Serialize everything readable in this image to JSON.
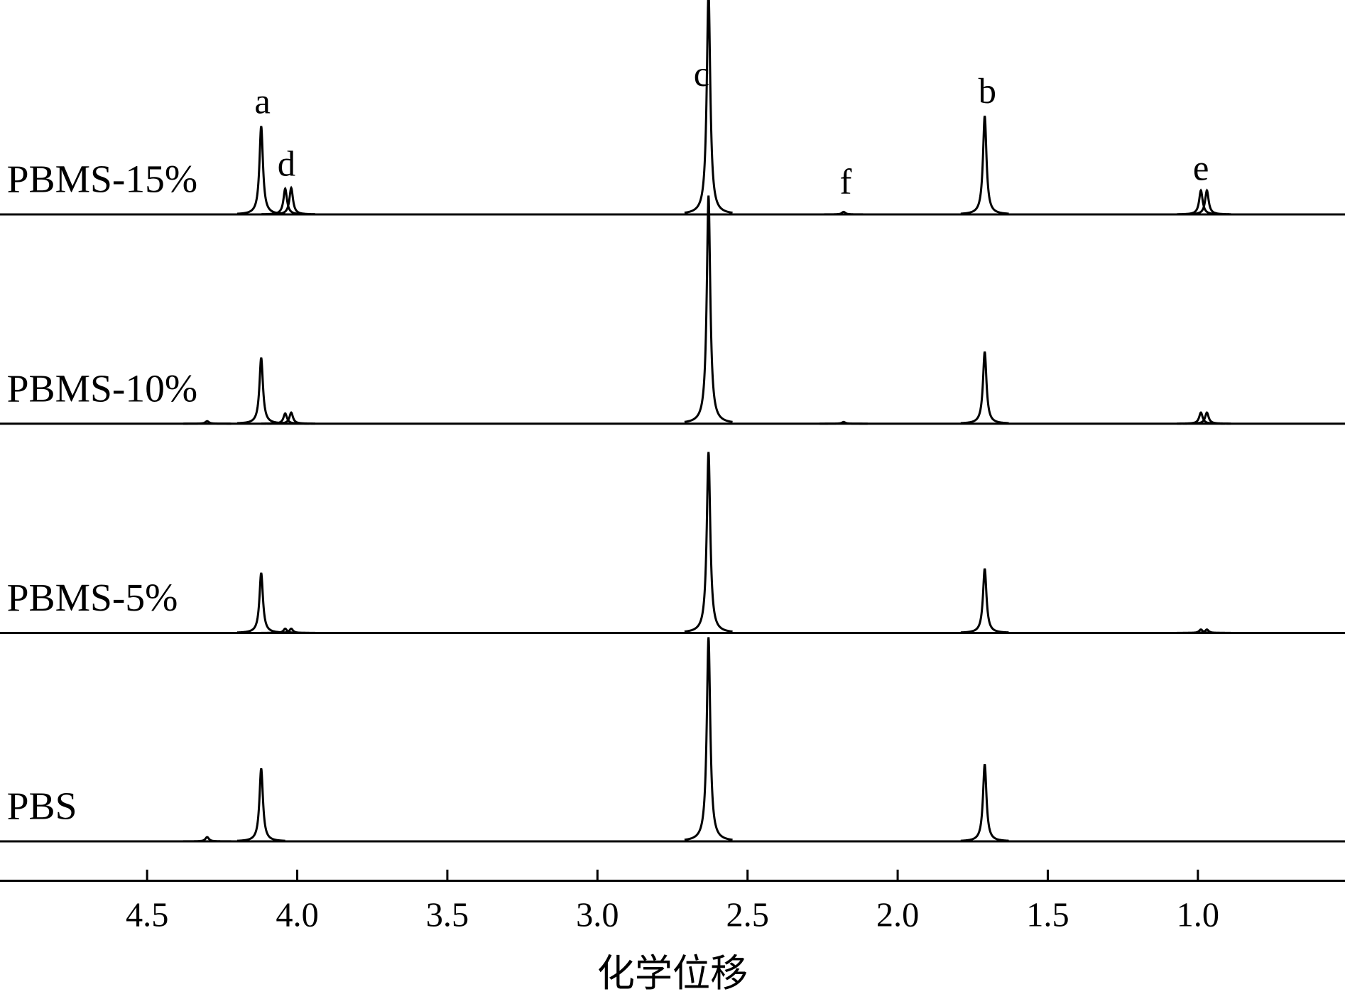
{
  "chart_data": {
    "type": "line",
    "x_label": "化学位移",
    "xlim": [
      4.99,
      0.51
    ],
    "xticks": [
      4.5,
      {
        "value": 4.0,
        "label": "4.0"
      },
      3.5,
      {
        "value": 3.0,
        "label": "3.0"
      },
      2.5,
      {
        "value": 2.0,
        "label": "2.0"
      },
      1.5,
      {
        "value": 1.0,
        "label": "1.0"
      }
    ],
    "color": "#000000",
    "series": [
      {
        "name": "PBMS-15%",
        "x": [
          4.12,
          4.04,
          4.02,
          2.63,
          2.18,
          1.71,
          0.99,
          0.97
        ],
        "values": [
          103,
          30,
          31,
          260,
          3,
          115,
          28,
          28
        ]
      },
      {
        "name": "PBMS-10%",
        "x": [
          4.3,
          4.12,
          4.04,
          4.02,
          2.63,
          2.18,
          1.71,
          0.99,
          0.97
        ],
        "values": [
          3,
          77,
          12,
          13,
          266,
          2,
          84,
          13,
          13
        ]
      },
      {
        "name": "PBMS-5%",
        "x": [
          4.12,
          4.04,
          4.02,
          2.63,
          1.71,
          0.99,
          0.97
        ],
        "values": [
          70,
          5,
          5,
          211,
          75,
          4,
          4
        ]
      },
      {
        "name": "PBS",
        "x": [
          4.3,
          4.12,
          2.63,
          1.71
        ],
        "values": [
          5,
          85,
          238,
          90
        ]
      }
    ],
    "annotations": [
      "a",
      "d",
      "c",
      "f",
      "b",
      "e"
    ]
  }
}
